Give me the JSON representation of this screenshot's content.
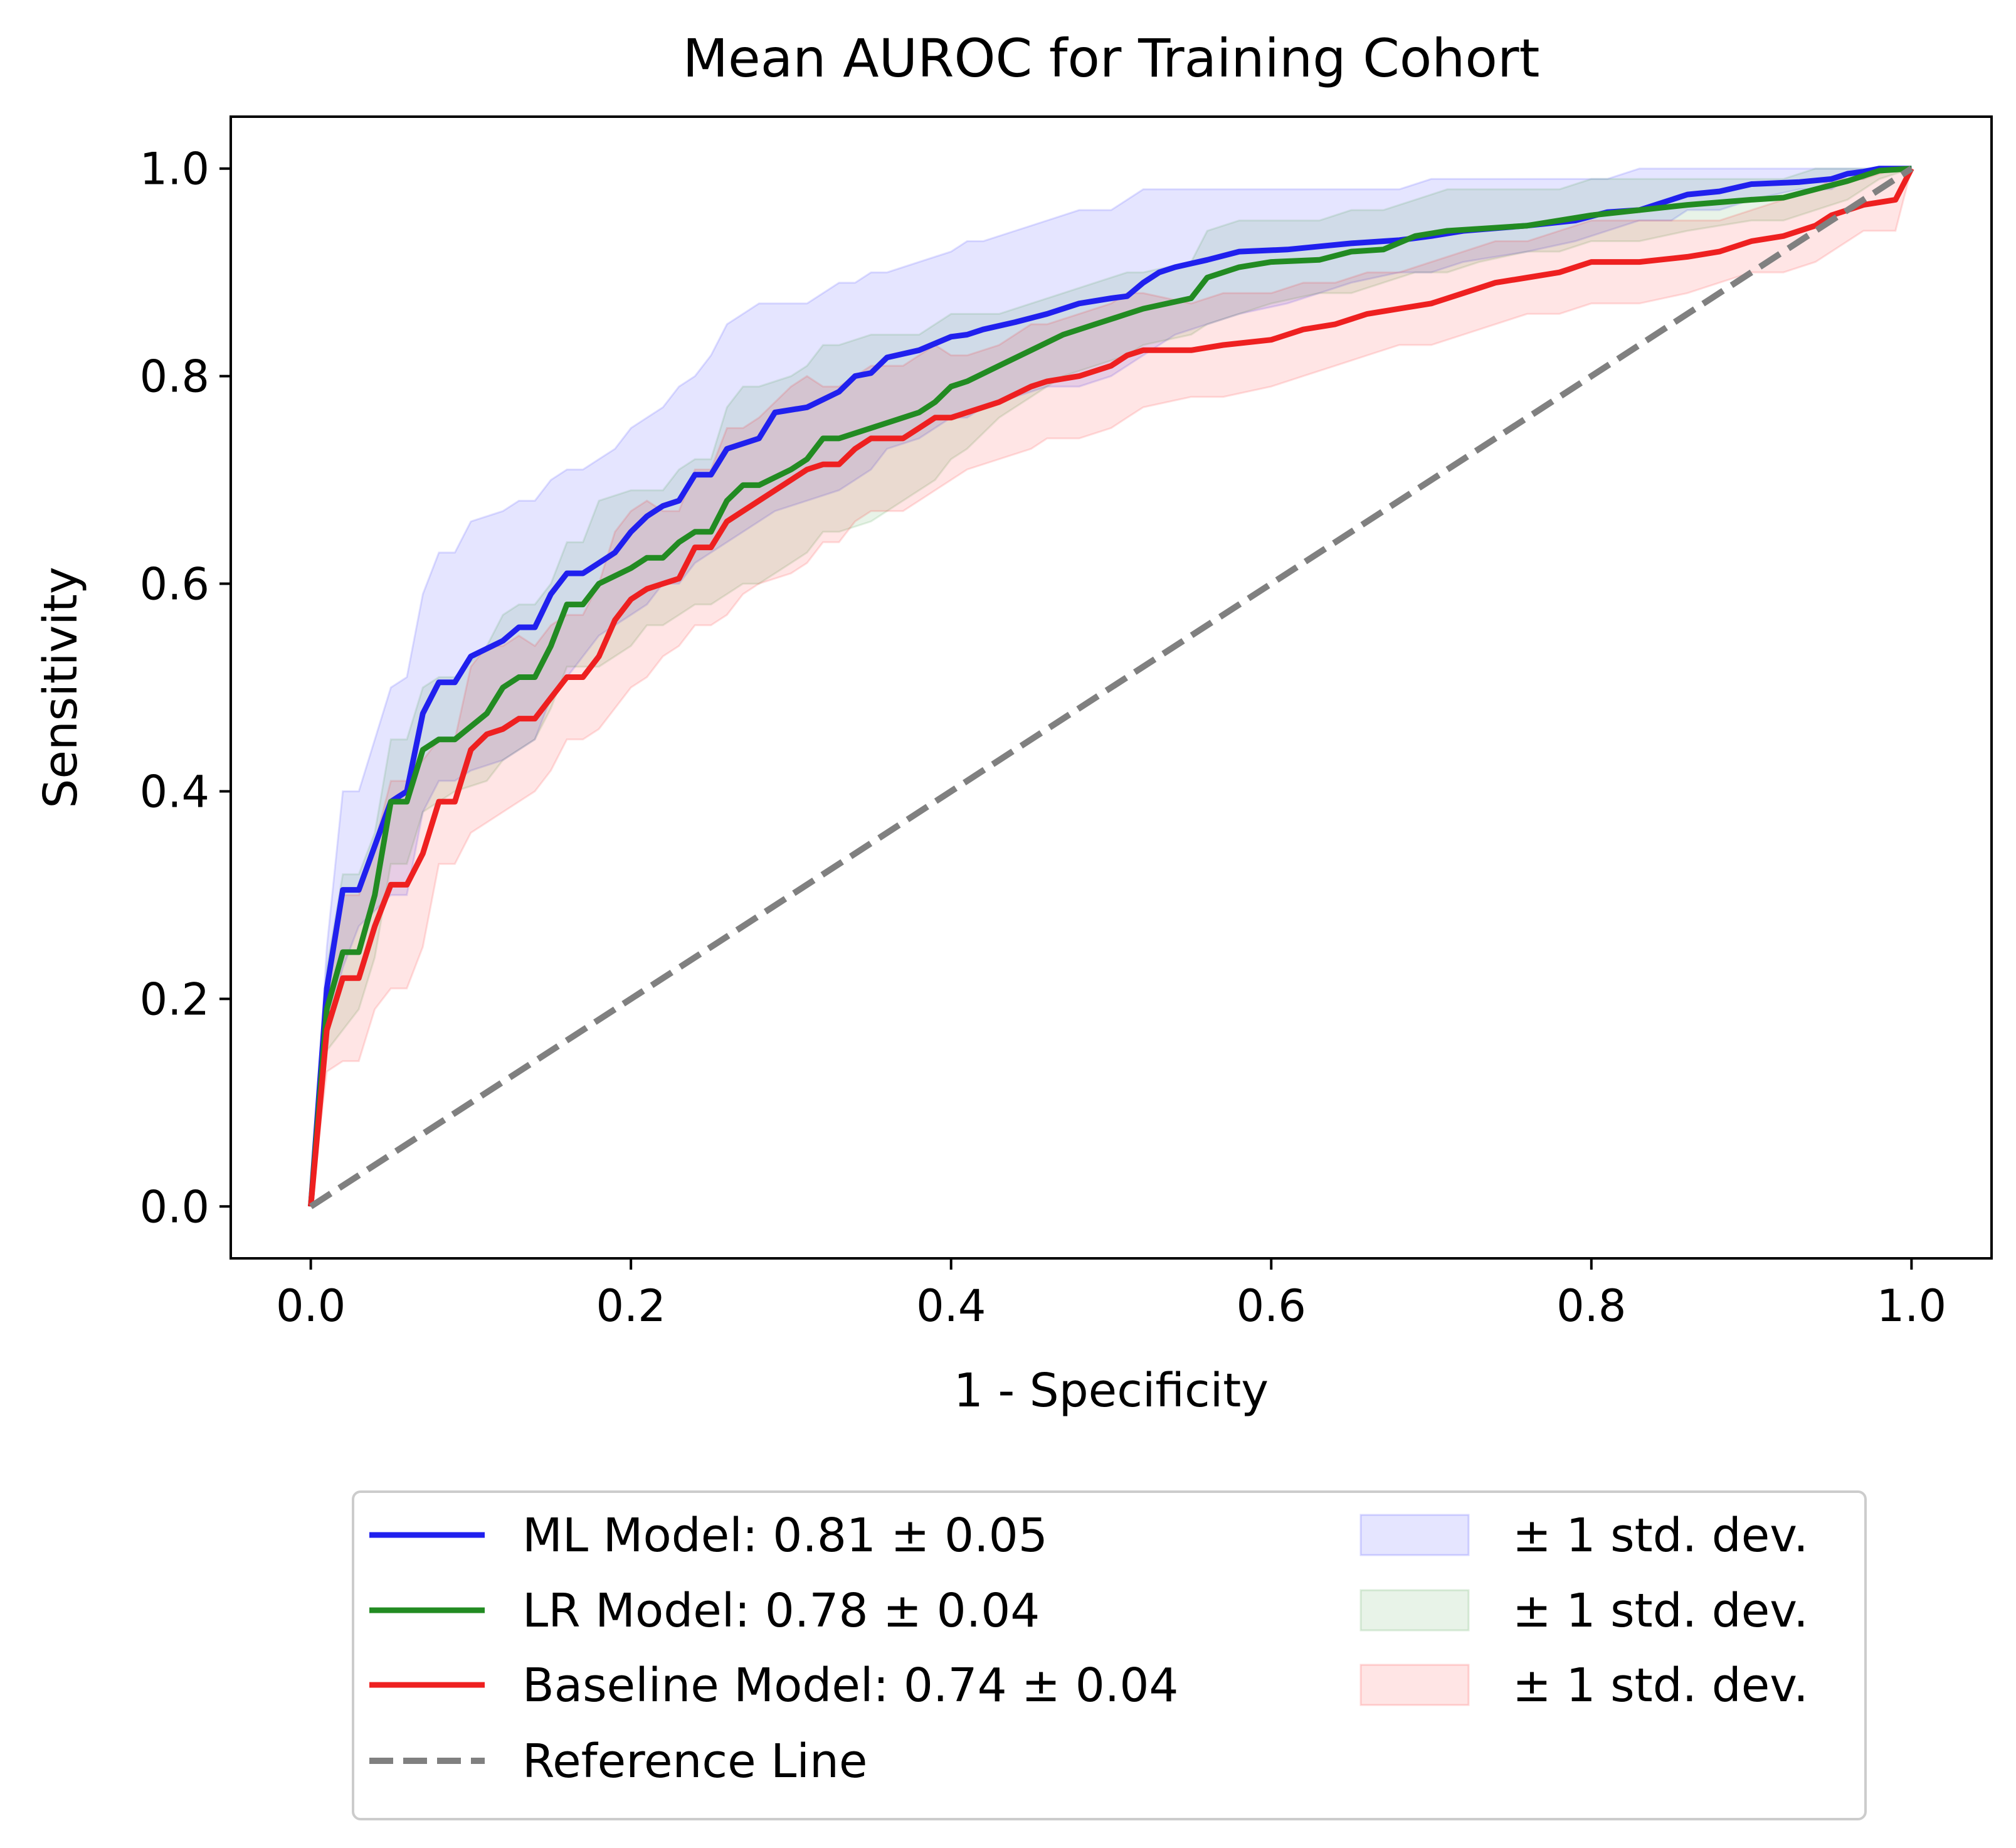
{
  "chart_data": {
    "type": "line",
    "title": "Mean AUROC for Training Cohort",
    "xlabel": "1 - Specificity",
    "ylabel": "Sensitivity",
    "xlim": [
      -0.05,
      1.05
    ],
    "ylim": [
      -0.05,
      1.05
    ],
    "xticks": [
      0.0,
      0.2,
      0.4,
      0.6,
      0.8,
      1.0
    ],
    "yticks": [
      0.0,
      0.2,
      0.4,
      0.6,
      0.8,
      1.0
    ],
    "xtick_labels": [
      "0.0",
      "0.2",
      "0.4",
      "0.6",
      "0.8",
      "1.0"
    ],
    "ytick_labels": [
      "0.0",
      "0.2",
      "0.4",
      "0.6",
      "0.8",
      "1.0"
    ],
    "grid": false,
    "legend_position": "below-center",
    "series": [
      {
        "name": "ML Model: 0.81 ± 0.05",
        "color": "#2020ee",
        "band_label": "± 1 std. dev.",
        "band_color": "#0000ff",
        "x": [
          0,
          0.01,
          0.02,
          0.03,
          0.05,
          0.06,
          0.07,
          0.08,
          0.09,
          0.1,
          0.12,
          0.13,
          0.14,
          0.15,
          0.16,
          0.17,
          0.18,
          0.19,
          0.2,
          0.21,
          0.22,
          0.23,
          0.24,
          0.25,
          0.26,
          0.28,
          0.29,
          0.31,
          0.33,
          0.34,
          0.35,
          0.36,
          0.38,
          0.4,
          0.41,
          0.42,
          0.44,
          0.46,
          0.48,
          0.5,
          0.51,
          0.52,
          0.53,
          0.54,
          0.56,
          0.58,
          0.61,
          0.63,
          0.65,
          0.68,
          0.7,
          0.72,
          0.76,
          0.79,
          0.81,
          0.83,
          0.85,
          0.86,
          0.88,
          0.9,
          0.93,
          0.95,
          0.96,
          0.97,
          0.98,
          1.0
        ],
        "y": [
          0,
          0.21,
          0.305,
          0.305,
          0.39,
          0.4,
          0.475,
          0.505,
          0.505,
          0.53,
          0.545,
          0.558,
          0.558,
          0.59,
          0.61,
          0.61,
          0.62,
          0.63,
          0.65,
          0.665,
          0.675,
          0.68,
          0.705,
          0.705,
          0.73,
          0.74,
          0.765,
          0.77,
          0.785,
          0.8,
          0.803,
          0.818,
          0.825,
          0.838,
          0.84,
          0.845,
          0.852,
          0.86,
          0.87,
          0.875,
          0.877,
          0.89,
          0.9,
          0.905,
          0.912,
          0.92,
          0.922,
          0.925,
          0.928,
          0.931,
          0.935,
          0.94,
          0.945,
          0.95,
          0.958,
          0.96,
          0.97,
          0.975,
          0.978,
          0.985,
          0.987,
          0.99,
          0.995,
          0.997,
          1.0,
          1.0
        ],
        "lower": [
          0,
          0.17,
          0.23,
          0.27,
          0.3,
          0.3,
          0.38,
          0.41,
          0.41,
          0.42,
          0.43,
          0.44,
          0.45,
          0.49,
          0.51,
          0.53,
          0.55,
          0.56,
          0.57,
          0.58,
          0.6,
          0.6,
          0.62,
          0.63,
          0.64,
          0.66,
          0.67,
          0.68,
          0.69,
          0.7,
          0.71,
          0.73,
          0.74,
          0.76,
          0.76,
          0.77,
          0.78,
          0.79,
          0.79,
          0.8,
          0.81,
          0.82,
          0.83,
          0.84,
          0.85,
          0.86,
          0.87,
          0.88,
          0.89,
          0.9,
          0.9,
          0.91,
          0.92,
          0.93,
          0.94,
          0.95,
          0.95,
          0.96,
          0.96,
          0.97,
          0.98,
          0.98,
          0.99,
          0.99,
          1.0,
          1.0
        ],
        "upper": [
          0,
          0.25,
          0.4,
          0.4,
          0.5,
          0.51,
          0.59,
          0.63,
          0.63,
          0.66,
          0.67,
          0.68,
          0.68,
          0.7,
          0.71,
          0.71,
          0.72,
          0.73,
          0.75,
          0.76,
          0.77,
          0.79,
          0.8,
          0.82,
          0.85,
          0.87,
          0.87,
          0.87,
          0.89,
          0.89,
          0.9,
          0.9,
          0.91,
          0.92,
          0.93,
          0.93,
          0.94,
          0.95,
          0.96,
          0.96,
          0.97,
          0.98,
          0.98,
          0.98,
          0.98,
          0.98,
          0.98,
          0.98,
          0.98,
          0.98,
          0.99,
          0.99,
          0.99,
          0.99,
          0.99,
          1.0,
          1.0,
          1.0,
          1.0,
          1.0,
          1.0,
          1.0,
          1.0,
          1.0,
          1.0,
          1.0
        ]
      },
      {
        "name": "LR Model: 0.78 ± 0.04",
        "color": "#228b22",
        "band_label": "± 1 std. dev.",
        "band_color": "#228b22",
        "x": [
          0,
          0.01,
          0.02,
          0.03,
          0.04,
          0.05,
          0.06,
          0.07,
          0.08,
          0.09,
          0.11,
          0.12,
          0.13,
          0.14,
          0.15,
          0.16,
          0.17,
          0.18,
          0.2,
          0.21,
          0.22,
          0.23,
          0.24,
          0.25,
          0.26,
          0.27,
          0.28,
          0.3,
          0.31,
          0.32,
          0.33,
          0.35,
          0.36,
          0.38,
          0.39,
          0.4,
          0.41,
          0.43,
          0.45,
          0.47,
          0.49,
          0.51,
          0.52,
          0.55,
          0.56,
          0.58,
          0.6,
          0.63,
          0.65,
          0.67,
          0.69,
          0.71,
          0.73,
          0.76,
          0.78,
          0.8,
          0.83,
          0.86,
          0.9,
          0.92,
          0.94,
          0.96,
          0.98,
          1.0
        ],
        "y": [
          0,
          0.19,
          0.245,
          0.245,
          0.3,
          0.39,
          0.39,
          0.44,
          0.45,
          0.45,
          0.475,
          0.5,
          0.51,
          0.51,
          0.54,
          0.58,
          0.58,
          0.6,
          0.615,
          0.625,
          0.625,
          0.64,
          0.65,
          0.65,
          0.68,
          0.695,
          0.695,
          0.71,
          0.72,
          0.74,
          0.74,
          0.75,
          0.755,
          0.765,
          0.775,
          0.79,
          0.795,
          0.81,
          0.825,
          0.84,
          0.85,
          0.86,
          0.865,
          0.875,
          0.895,
          0.905,
          0.91,
          0.912,
          0.92,
          0.922,
          0.935,
          0.94,
          0.942,
          0.945,
          0.95,
          0.955,
          0.96,
          0.965,
          0.97,
          0.972,
          0.98,
          0.988,
          0.998,
          1.0
        ],
        "lower": [
          0,
          0.15,
          0.17,
          0.19,
          0.24,
          0.33,
          0.33,
          0.38,
          0.39,
          0.4,
          0.41,
          0.43,
          0.44,
          0.45,
          0.48,
          0.52,
          0.52,
          0.52,
          0.54,
          0.56,
          0.56,
          0.57,
          0.58,
          0.58,
          0.59,
          0.6,
          0.6,
          0.62,
          0.63,
          0.65,
          0.65,
          0.66,
          0.67,
          0.69,
          0.7,
          0.72,
          0.73,
          0.76,
          0.78,
          0.8,
          0.81,
          0.82,
          0.83,
          0.84,
          0.85,
          0.86,
          0.87,
          0.88,
          0.88,
          0.89,
          0.9,
          0.9,
          0.91,
          0.92,
          0.92,
          0.93,
          0.93,
          0.94,
          0.95,
          0.95,
          0.96,
          0.97,
          0.99,
          1.0
        ],
        "upper": [
          0,
          0.23,
          0.32,
          0.32,
          0.36,
          0.45,
          0.45,
          0.5,
          0.51,
          0.51,
          0.54,
          0.57,
          0.58,
          0.58,
          0.6,
          0.64,
          0.64,
          0.68,
          0.69,
          0.69,
          0.69,
          0.71,
          0.72,
          0.72,
          0.77,
          0.79,
          0.79,
          0.8,
          0.81,
          0.83,
          0.83,
          0.84,
          0.84,
          0.84,
          0.85,
          0.86,
          0.86,
          0.86,
          0.87,
          0.88,
          0.89,
          0.9,
          0.9,
          0.91,
          0.94,
          0.95,
          0.95,
          0.95,
          0.96,
          0.96,
          0.97,
          0.98,
          0.98,
          0.98,
          0.98,
          0.99,
          0.99,
          0.99,
          0.99,
          0.99,
          1.0,
          1.0,
          1.0,
          1.0
        ]
      },
      {
        "name": "Baseline Model: 0.74 ± 0.04",
        "color": "#ee2020",
        "band_label": "± 1 std. dev.",
        "band_color": "#ff0000",
        "x": [
          0,
          0.01,
          0.02,
          0.03,
          0.04,
          0.05,
          0.06,
          0.07,
          0.08,
          0.09,
          0.1,
          0.11,
          0.12,
          0.13,
          0.14,
          0.15,
          0.16,
          0.17,
          0.18,
          0.19,
          0.2,
          0.21,
          0.22,
          0.23,
          0.24,
          0.25,
          0.26,
          0.27,
          0.28,
          0.3,
          0.31,
          0.32,
          0.33,
          0.34,
          0.35,
          0.37,
          0.38,
          0.39,
          0.4,
          0.41,
          0.43,
          0.45,
          0.46,
          0.48,
          0.5,
          0.51,
          0.52,
          0.55,
          0.57,
          0.6,
          0.62,
          0.64,
          0.66,
          0.68,
          0.7,
          0.72,
          0.74,
          0.76,
          0.78,
          0.8,
          0.83,
          0.86,
          0.88,
          0.9,
          0.92,
          0.94,
          0.95,
          0.97,
          0.99,
          1.0
        ],
        "y": [
          0,
          0.17,
          0.22,
          0.22,
          0.27,
          0.31,
          0.31,
          0.34,
          0.39,
          0.39,
          0.44,
          0.455,
          0.46,
          0.47,
          0.47,
          0.49,
          0.51,
          0.51,
          0.53,
          0.565,
          0.585,
          0.595,
          0.6,
          0.605,
          0.635,
          0.635,
          0.66,
          0.67,
          0.68,
          0.7,
          0.71,
          0.715,
          0.715,
          0.73,
          0.74,
          0.74,
          0.75,
          0.76,
          0.76,
          0.765,
          0.775,
          0.79,
          0.795,
          0.8,
          0.81,
          0.82,
          0.825,
          0.825,
          0.83,
          0.835,
          0.845,
          0.85,
          0.86,
          0.865,
          0.87,
          0.88,
          0.89,
          0.895,
          0.9,
          0.91,
          0.91,
          0.915,
          0.92,
          0.93,
          0.935,
          0.945,
          0.955,
          0.965,
          0.97,
          1.0
        ],
        "lower": [
          0,
          0.13,
          0.14,
          0.14,
          0.19,
          0.21,
          0.21,
          0.25,
          0.33,
          0.33,
          0.36,
          0.37,
          0.38,
          0.39,
          0.4,
          0.42,
          0.45,
          0.45,
          0.46,
          0.48,
          0.5,
          0.51,
          0.53,
          0.54,
          0.56,
          0.56,
          0.57,
          0.59,
          0.6,
          0.61,
          0.62,
          0.64,
          0.64,
          0.66,
          0.67,
          0.67,
          0.68,
          0.69,
          0.7,
          0.71,
          0.72,
          0.73,
          0.74,
          0.74,
          0.75,
          0.76,
          0.77,
          0.78,
          0.78,
          0.79,
          0.8,
          0.81,
          0.82,
          0.83,
          0.83,
          0.84,
          0.85,
          0.86,
          0.86,
          0.87,
          0.87,
          0.88,
          0.89,
          0.9,
          0.9,
          0.91,
          0.92,
          0.94,
          0.94,
          1.0
        ],
        "upper": [
          0,
          0.21,
          0.3,
          0.3,
          0.35,
          0.41,
          0.41,
          0.43,
          0.45,
          0.45,
          0.52,
          0.54,
          0.54,
          0.55,
          0.54,
          0.56,
          0.57,
          0.57,
          0.6,
          0.65,
          0.67,
          0.68,
          0.67,
          0.67,
          0.71,
          0.71,
          0.75,
          0.75,
          0.76,
          0.79,
          0.8,
          0.79,
          0.79,
          0.8,
          0.81,
          0.81,
          0.82,
          0.83,
          0.82,
          0.82,
          0.83,
          0.85,
          0.85,
          0.86,
          0.87,
          0.88,
          0.88,
          0.87,
          0.88,
          0.88,
          0.89,
          0.89,
          0.9,
          0.9,
          0.91,
          0.92,
          0.93,
          0.93,
          0.94,
          0.95,
          0.95,
          0.95,
          0.95,
          0.96,
          0.97,
          0.98,
          0.99,
          0.99,
          1.0,
          1.0
        ]
      },
      {
        "name": "Reference Line",
        "color": "#808080",
        "style": "dashed",
        "x": [
          0,
          1
        ],
        "y": [
          0,
          1
        ]
      }
    ]
  }
}
